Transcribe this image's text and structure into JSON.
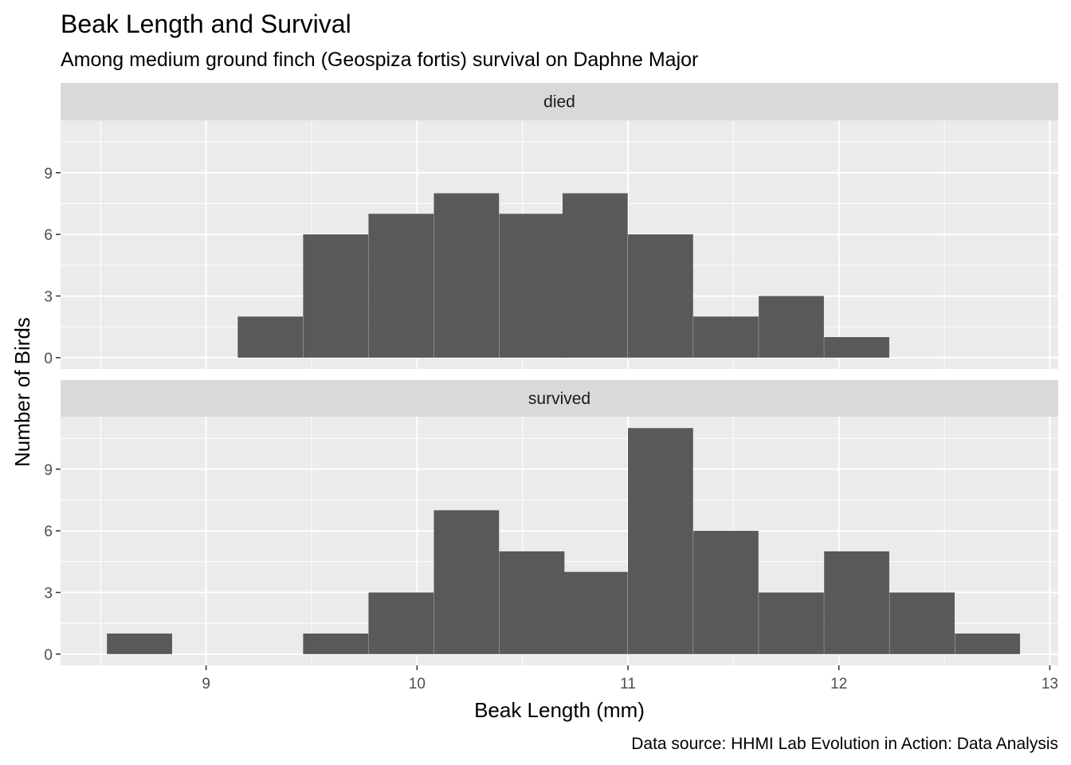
{
  "chart_data": {
    "type": "bar",
    "title": "Beak Length and Survival",
    "subtitle": "Among medium ground finch (Geospiza fortis) survival on Daphne Major",
    "xlabel": "Beak Length (mm)",
    "ylabel": "Number of Birds",
    "caption": "Data source: HHMI Lab Evolution in Action: Data Analysis",
    "xlim": [
      8.31,
      13.04
    ],
    "ylim": [
      -0.55,
      11.55
    ],
    "x_ticks": [
      9,
      10,
      11,
      12,
      13
    ],
    "y_ticks": [
      0,
      3,
      6,
      9
    ],
    "grid": true,
    "bin_width": 0.3088,
    "bar_color": "#595959",
    "panel_background": "#ebebeb",
    "strip_background": "#d9d9d9",
    "bin_starts": [
      8.53,
      8.84,
      9.15,
      9.46,
      9.77,
      10.08,
      10.39,
      10.69,
      11.0,
      11.31,
      11.62,
      11.93,
      12.24,
      12.55
    ],
    "panels": [
      {
        "label": "died",
        "counts": [
          0,
          0,
          2,
          6,
          7,
          8,
          7,
          8,
          6,
          2,
          3,
          1,
          0,
          0
        ]
      },
      {
        "label": "survived",
        "counts": [
          1,
          0,
          0,
          1,
          3,
          7,
          5,
          4,
          11,
          6,
          3,
          5,
          3,
          1
        ]
      }
    ]
  }
}
